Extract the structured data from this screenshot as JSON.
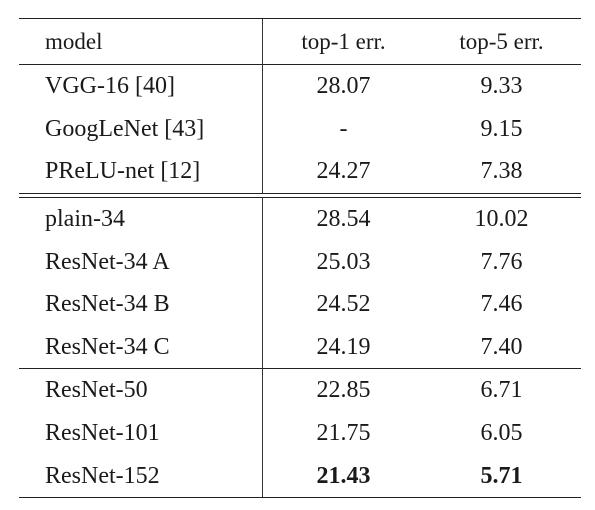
{
  "table": {
    "columns": [
      "model",
      "top-1 err.",
      "top-5 err."
    ],
    "groups": [
      [
        {
          "model": "VGG-16 [40]",
          "top1": "28.07",
          "top5": "9.33"
        },
        {
          "model": "GoogLeNet [43]",
          "top1": "-",
          "top5": "9.15"
        },
        {
          "model": "PReLU-net [12]",
          "top1": "24.27",
          "top5": "7.38"
        }
      ],
      [
        {
          "model": "plain-34",
          "top1": "28.54",
          "top5": "10.02"
        },
        {
          "model": "ResNet-34 A",
          "top1": "25.03",
          "top5": "7.76"
        },
        {
          "model": "ResNet-34 B",
          "top1": "24.52",
          "top5": "7.46"
        },
        {
          "model": "ResNet-34 C",
          "top1": "24.19",
          "top5": "7.40"
        }
      ],
      [
        {
          "model": "ResNet-50",
          "top1": "22.85",
          "top5": "6.71"
        },
        {
          "model": "ResNet-101",
          "top1": "21.75",
          "top5": "6.05"
        },
        {
          "model": "ResNet-152",
          "top1": "21.43",
          "top5": "5.71",
          "bold": true
        }
      ]
    ]
  }
}
